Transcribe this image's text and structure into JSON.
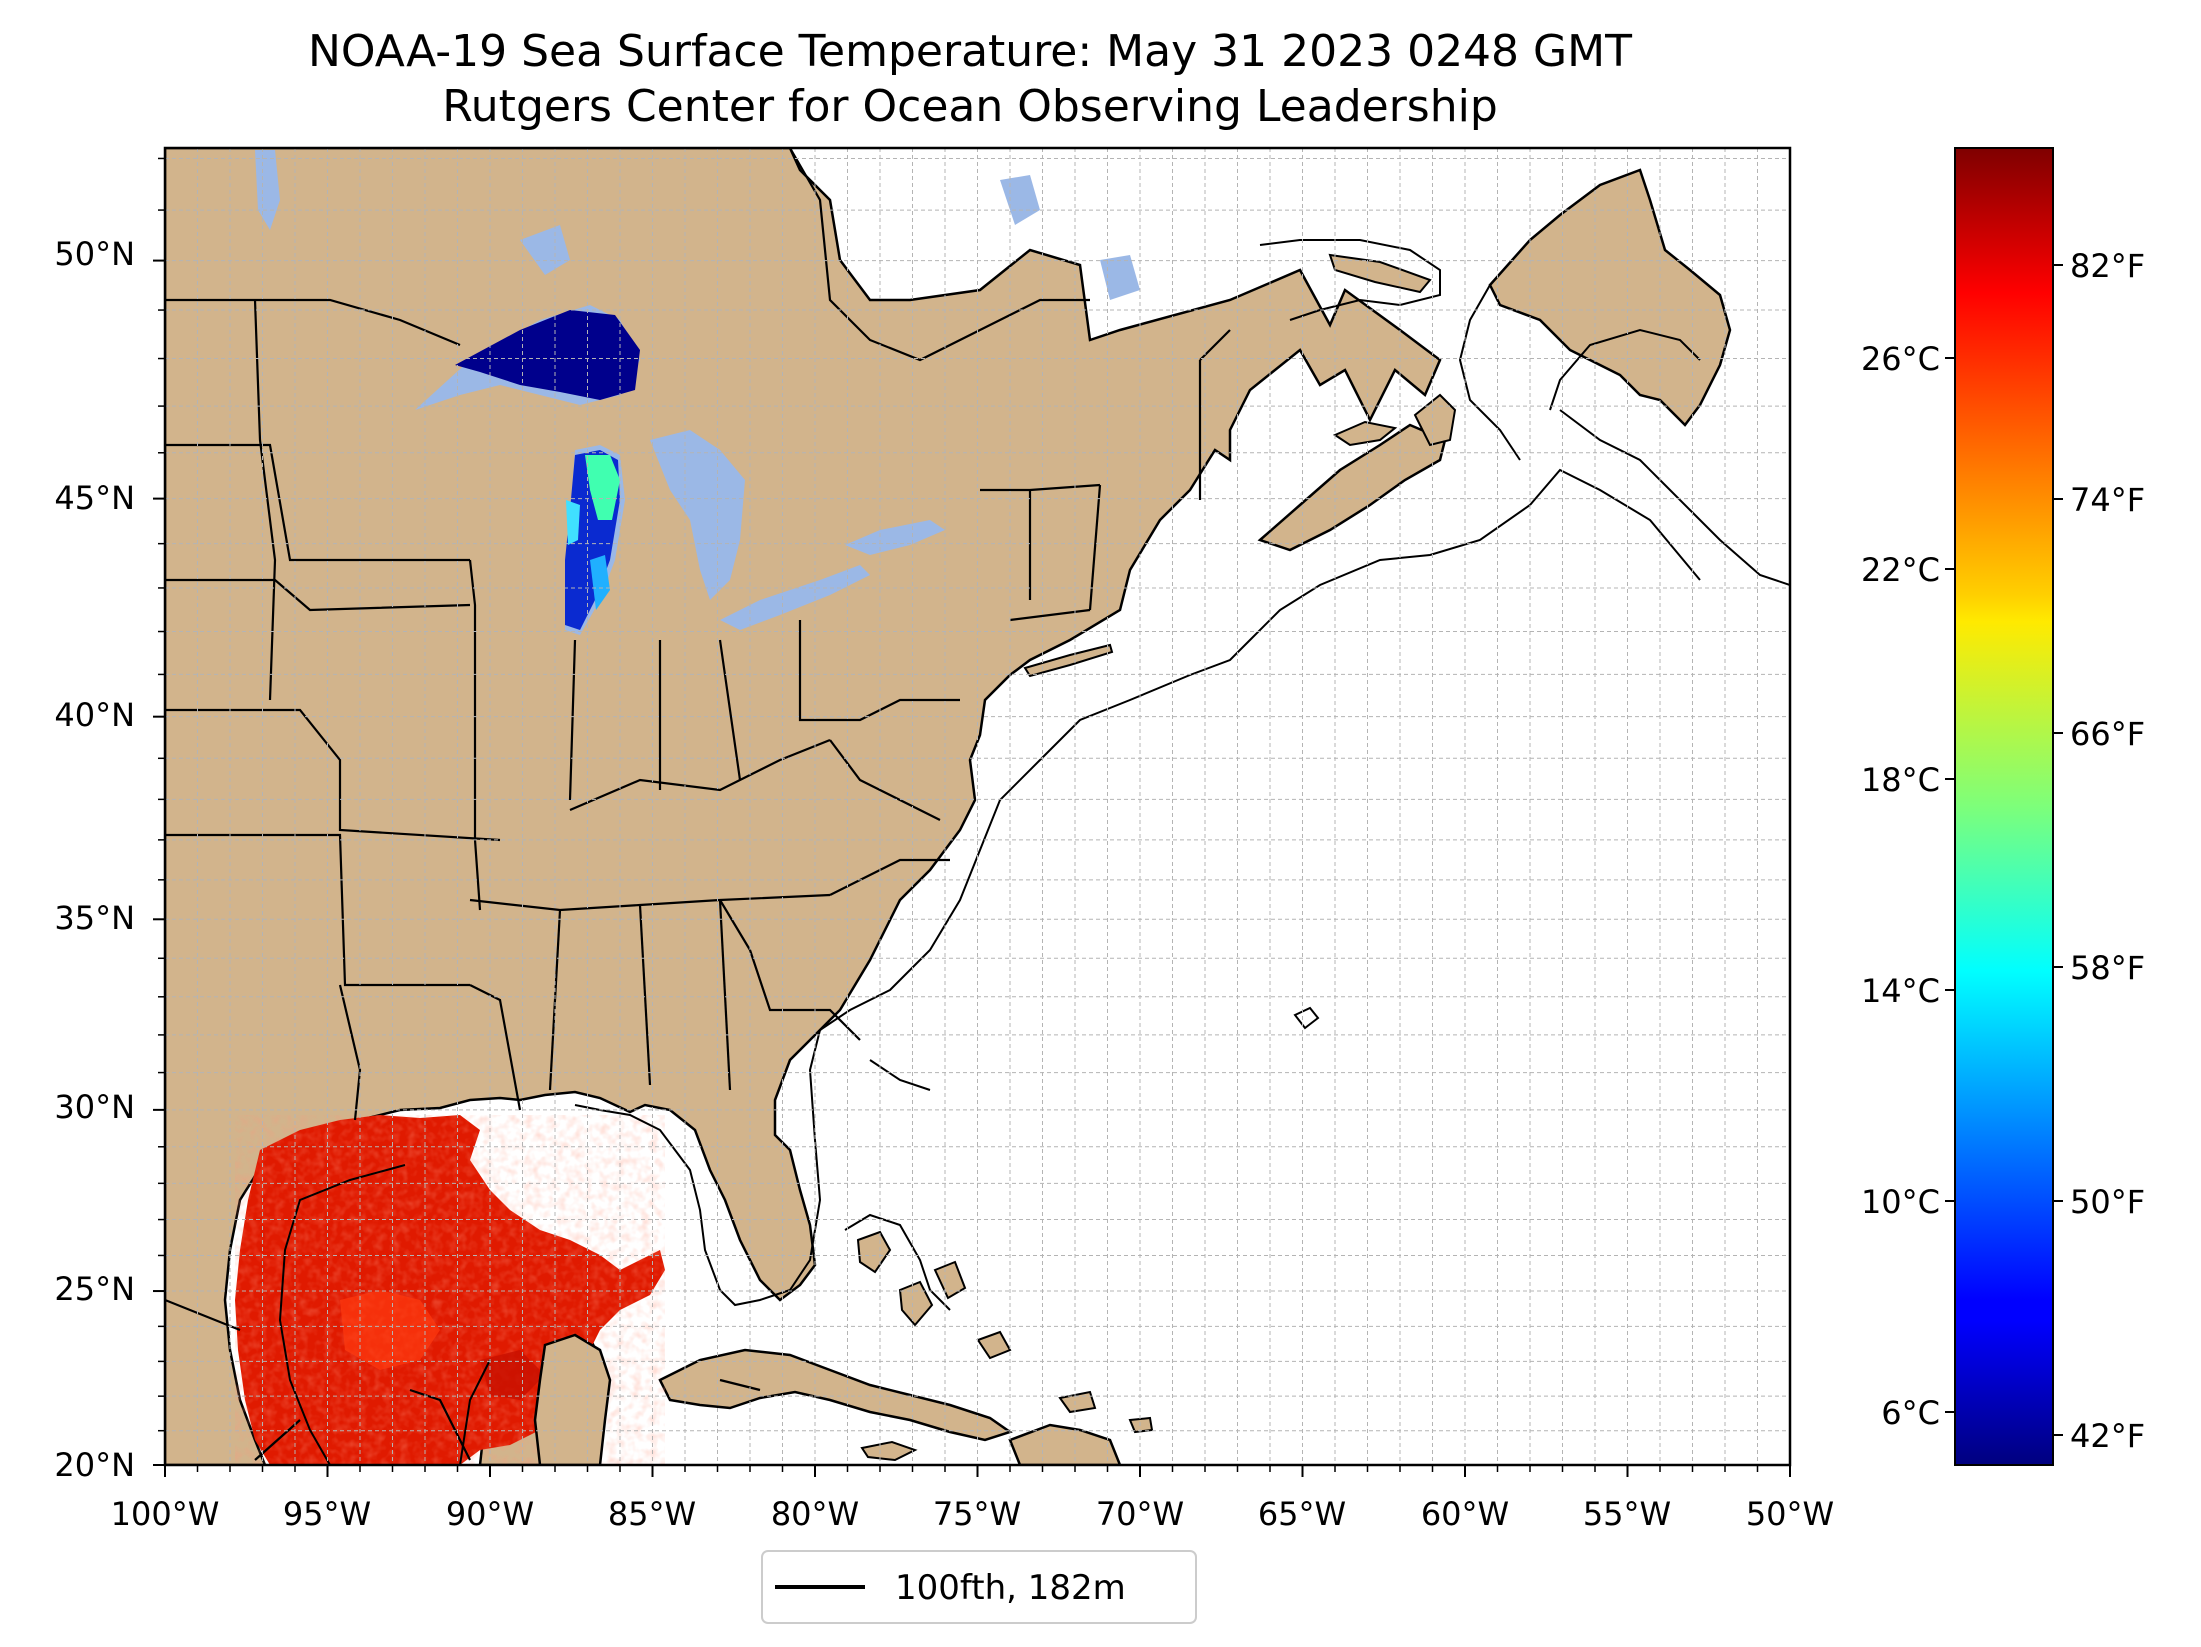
{
  "title": {
    "line1": "NOAA-19 Sea Surface Temperature: May 31 2023 0248 GMT",
    "line2": "Rutgers Center for Ocean Observing Leadership"
  },
  "map": {
    "lon_range": [
      -100,
      -50
    ],
    "lat_range": [
      20,
      52.2
    ],
    "lat_ticks": [
      "20°N",
      "25°N",
      "30°N",
      "35°N",
      "40°N",
      "45°N",
      "50°N"
    ],
    "lon_ticks": [
      "100°W",
      "95°W",
      "90°W",
      "85°W",
      "80°W",
      "75°W",
      "70°W",
      "65°W",
      "60°W",
      "55°W",
      "50°W"
    ],
    "gridlines": true,
    "colors": {
      "land": "#d2b48c",
      "lakes": "#9bb8e6",
      "ocean": "#ffffff",
      "grid": "#b4b4b4"
    }
  },
  "colorbar": {
    "celsius_ticks": [
      "6°C",
      "10°C",
      "14°C",
      "18°C",
      "22°C",
      "26°C"
    ],
    "fahrenheit_ticks": [
      "42°F",
      "50°F",
      "58°F",
      "66°F",
      "74°F",
      "82°F"
    ],
    "colormap": "jet"
  },
  "legend": {
    "label": "100fth, 182m",
    "placement": "bottom-center"
  }
}
